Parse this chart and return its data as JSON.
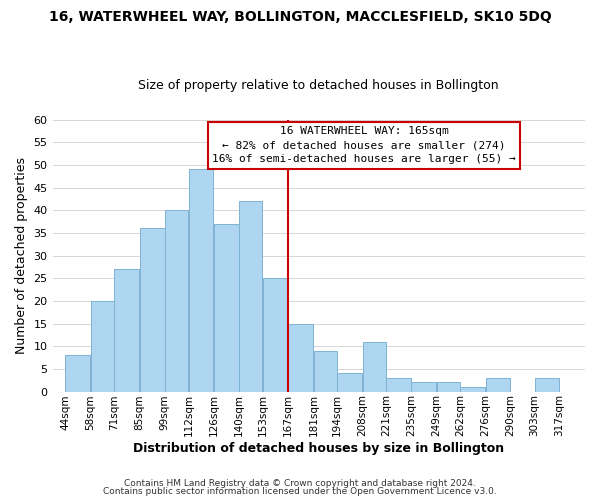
{
  "title": "16, WATERWHEEL WAY, BOLLINGTON, MACCLESFIELD, SK10 5DQ",
  "subtitle": "Size of property relative to detached houses in Bollington",
  "xlabel": "Distribution of detached houses by size in Bollington",
  "ylabel": "Number of detached properties",
  "bar_left_edges": [
    44,
    58,
    71,
    85,
    99,
    112,
    126,
    140,
    153,
    167,
    181,
    194,
    208,
    221,
    235,
    249,
    262,
    276,
    290,
    303
  ],
  "bar_heights": [
    8,
    20,
    27,
    36,
    40,
    49,
    37,
    42,
    25,
    15,
    9,
    4,
    11,
    3,
    2,
    2,
    1,
    3,
    0,
    3
  ],
  "bar_widths": [
    14,
    13,
    14,
    14,
    13,
    14,
    14,
    13,
    14,
    14,
    13,
    14,
    13,
    14,
    14,
    13,
    14,
    14,
    13,
    14
  ],
  "bar_color": "#aed6f1",
  "bar_edgecolor": "#7fb3d3",
  "vline_x": 167,
  "vline_color": "#cc0000",
  "ylim": [
    0,
    60
  ],
  "yticks": [
    0,
    5,
    10,
    15,
    20,
    25,
    30,
    35,
    40,
    45,
    50,
    55,
    60
  ],
  "xlim": [
    37,
    331
  ],
  "xtick_labels": [
    "44sqm",
    "58sqm",
    "71sqm",
    "85sqm",
    "99sqm",
    "112sqm",
    "126sqm",
    "140sqm",
    "153sqm",
    "167sqm",
    "181sqm",
    "194sqm",
    "208sqm",
    "221sqm",
    "235sqm",
    "249sqm",
    "262sqm",
    "276sqm",
    "290sqm",
    "303sqm",
    "317sqm"
  ],
  "xtick_positions": [
    44,
    58,
    71,
    85,
    99,
    112,
    126,
    140,
    153,
    167,
    181,
    194,
    208,
    221,
    235,
    249,
    262,
    276,
    290,
    303,
    317
  ],
  "annotation_title": "16 WATERWHEEL WAY: 165sqm",
  "annotation_line1": "← 82% of detached houses are smaller (274)",
  "annotation_line2": "16% of semi-detached houses are larger (55) →",
  "footer1": "Contains HM Land Registry data © Crown copyright and database right 2024.",
  "footer2": "Contains public sector information licensed under the Open Government Licence v3.0.",
  "background_color": "#ffffff",
  "grid_color": "#d0d0d0"
}
